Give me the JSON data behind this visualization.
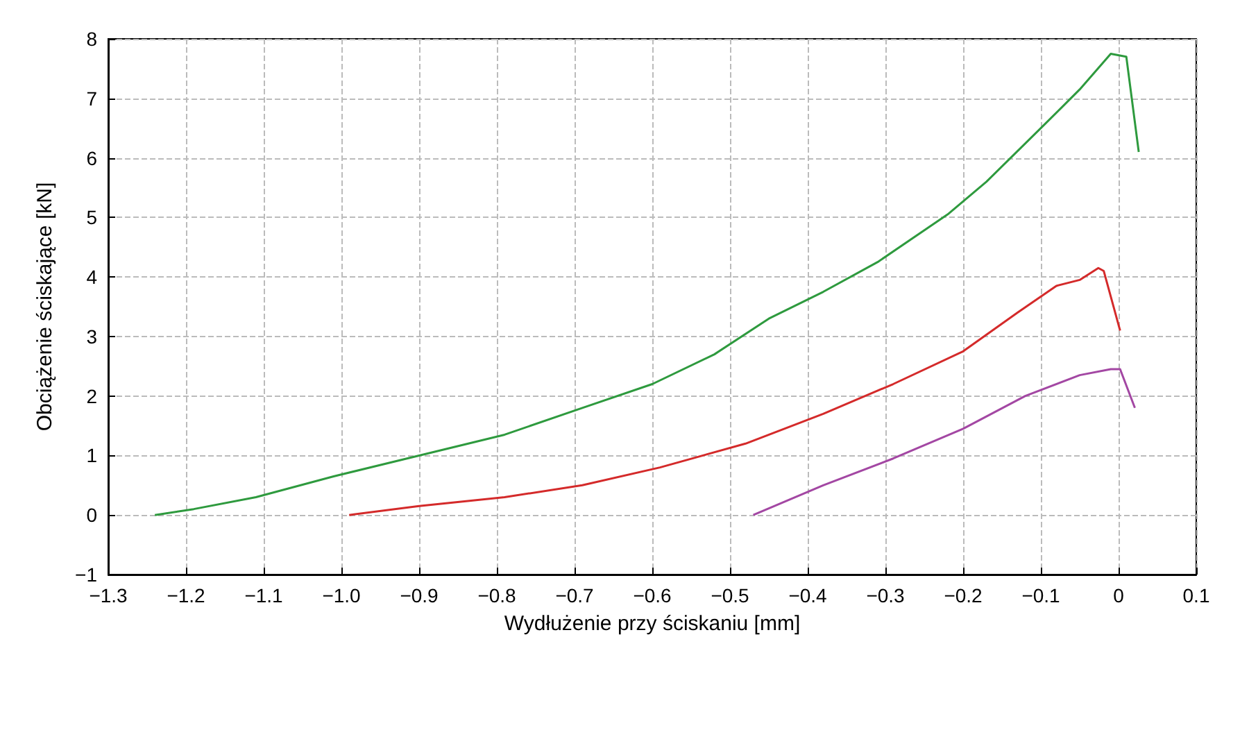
{
  "chart_data": {
    "type": "line",
    "xlabel": "Wydłużenie przy ściskaniu [mm]",
    "ylabel": "Obciążenie ściskające [kN]",
    "xlim": [
      -1.3,
      0.1
    ],
    "xticks": [
      -1.3,
      -1.2,
      -1.1,
      {
        "value": -1,
        "label": "−1.0"
      },
      -0.9,
      -0.8,
      -0.7,
      -0.6,
      -0.5,
      -0.4,
      -0.3,
      -0.2,
      -0.1,
      0,
      0.1
    ],
    "ylim": [
      -1,
      8
    ],
    "yticks": [
      -1,
      0,
      1,
      2,
      3,
      4,
      5,
      6,
      7,
      8
    ],
    "grid": true,
    "marker": "none",
    "series": [
      {
        "color": "#2e9a3e",
        "x": [
          -1.24,
          -1.19,
          -1.11,
          -1.01,
          -0.9,
          -0.79,
          -0.69,
          -0.6,
          -0.52,
          -0.45,
          -0.38,
          -0.31,
          -0.22,
          -0.17,
          -0.1,
          -0.05,
          -0.01,
          0.01,
          0.026
        ],
        "values": [
          0,
          0.1,
          0.3,
          0.65,
          1.0,
          1.35,
          1.8,
          2.2,
          2.7,
          3.3,
          3.75,
          4.25,
          5.05,
          5.6,
          6.5,
          7.15,
          7.75,
          7.7,
          6.1
        ]
      },
      {
        "color": "#d42a2a",
        "x": [
          -0.99,
          -0.9,
          -0.79,
          -0.69,
          -0.59,
          -0.48,
          -0.38,
          -0.29,
          -0.2,
          -0.13,
          -0.08,
          -0.05,
          -0.026,
          -0.019,
          0.002
        ],
        "values": [
          0,
          0.15,
          0.3,
          0.5,
          0.8,
          1.2,
          1.7,
          2.2,
          2.75,
          3.4,
          3.85,
          3.95,
          4.15,
          4.1,
          3.1
        ]
      },
      {
        "color": "#a347a3",
        "x": [
          -0.47,
          -0.38,
          -0.29,
          -0.2,
          -0.12,
          -0.05,
          -0.01,
          0.002,
          0.021
        ],
        "values": [
          0,
          0.5,
          0.95,
          1.45,
          2.0,
          2.35,
          2.45,
          2.45,
          1.8
        ]
      }
    ]
  }
}
